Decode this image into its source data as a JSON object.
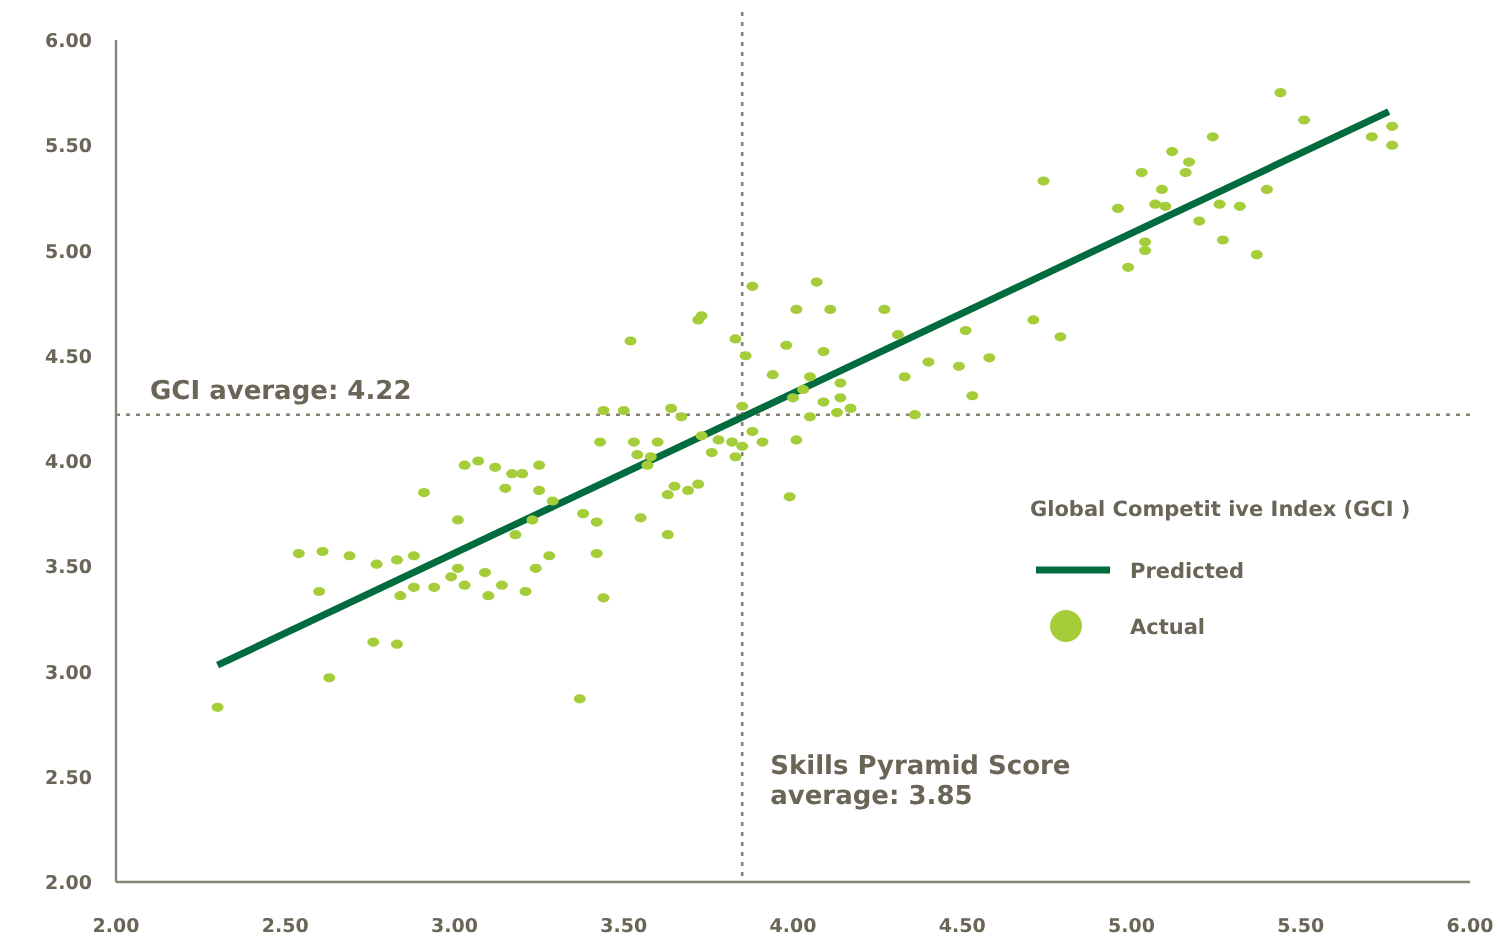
{
  "chart_data": {
    "type": "scatter",
    "xlim": [
      2,
      6
    ],
    "ylim": [
      2,
      6
    ],
    "xticks": [
      {
        "value": 2,
        "label": "2.00"
      },
      {
        "value": 2.5,
        "label": "2.50"
      },
      {
        "value": 3,
        "label": "3.00"
      },
      {
        "value": 3.5,
        "label": "3.50"
      },
      {
        "value": 4,
        "label": "4.00"
      },
      {
        "value": 4.5,
        "label": "4.50"
      },
      {
        "value": 5,
        "label": "5.00"
      },
      {
        "value": 5.5,
        "label": "5.50"
      },
      {
        "value": 6,
        "label": "6.00"
      }
    ],
    "yticks": [
      {
        "value": 2,
        "label": "2.00"
      },
      {
        "value": 2.5,
        "label": "2.50"
      },
      {
        "value": 3,
        "label": "3.00"
      },
      {
        "value": 3.5,
        "label": "3.50"
      },
      {
        "value": 4,
        "label": "4.00"
      },
      {
        "value": 4.5,
        "label": "4.50"
      },
      {
        "value": 5,
        "label": "5.00"
      },
      {
        "value": 5.5,
        "label": "5.50"
      },
      {
        "value": 6,
        "label": "6.00"
      }
    ],
    "grid": false,
    "legend": "right",
    "legend_title": "Global Competit ive Index (GCI  )",
    "ref_lines": [
      {
        "axis": "x",
        "value": 3.85,
        "label": "Skills Pyramid Score average: 3.85",
        "color": "#8a8273",
        "line_style": "dotted"
      },
      {
        "axis": "y",
        "value": 4.22,
        "label": "GCI  average: 4.22",
        "color": "#8a8273",
        "line_style": "dotted"
      }
    ],
    "series": [
      {
        "name": "Predicted",
        "type": "line",
        "color": "#006b3c",
        "line_style": "solid",
        "x": [
          2.3,
          5.76
        ],
        "values": [
          3.03,
          5.66
        ]
      },
      {
        "name": "Actual",
        "color": "#a5cd39",
        "marker": "circle",
        "x": [
          2.3,
          2.54,
          2.61,
          2.69,
          2.6,
          2.77,
          2.83,
          2.88,
          2.84,
          2.88,
          2.94,
          2.99,
          3.01,
          3.03,
          3.09,
          3.1,
          3.14,
          3.21,
          3.24,
          3.28,
          3.42,
          3.44,
          2.76,
          2.83,
          2.63,
          3.37,
          2.91,
          3.01,
          3.03,
          3.07,
          3.12,
          3.17,
          3.2,
          3.25,
          3.15,
          3.25,
          3.29,
          3.18,
          3.23,
          3.38,
          3.42,
          3.43,
          3.44,
          3.5,
          3.88,
          4.07,
          3.72,
          3.73,
          3.52,
          4.01,
          4.11,
          4.27,
          3.83,
          3.98,
          4.09,
          3.86,
          4.31,
          4.4,
          4.49,
          3.94,
          4.05,
          4.14,
          4.03,
          4.0,
          4.14,
          4.09,
          4.33,
          3.64,
          3.67,
          3.85,
          4.05,
          4.13,
          4.17,
          4.36,
          3.53,
          3.6,
          3.54,
          3.58,
          3.57,
          3.73,
          3.78,
          3.82,
          3.76,
          3.83,
          3.88,
          3.85,
          3.91,
          4.01,
          3.65,
          3.63,
          3.69,
          3.72,
          3.55,
          3.63,
          3.99,
          5.44,
          5.51,
          5.77,
          5.71,
          5.77,
          5.24,
          5.12,
          5.17,
          5.16,
          5.03,
          5.09,
          5.07,
          5.1,
          4.96,
          5.26,
          5.32,
          5.4,
          5.2,
          5.04,
          5.04,
          5.27,
          5.37,
          4.99,
          4.74,
          4.71,
          4.79,
          4.51,
          4.58,
          4.53
        ],
        "values": [
          2.83,
          3.56,
          3.57,
          3.55,
          3.38,
          3.51,
          3.53,
          3.55,
          3.36,
          3.4,
          3.4,
          3.45,
          3.49,
          3.41,
          3.47,
          3.36,
          3.41,
          3.38,
          3.49,
          3.55,
          3.56,
          3.35,
          3.14,
          3.13,
          2.97,
          2.87,
          3.85,
          3.72,
          3.98,
          4.0,
          3.97,
          3.94,
          3.94,
          3.98,
          3.87,
          3.86,
          3.81,
          3.65,
          3.72,
          3.75,
          3.71,
          4.09,
          4.24,
          4.24,
          4.83,
          4.85,
          4.67,
          4.69,
          4.57,
          4.72,
          4.72,
          4.72,
          4.58,
          4.55,
          4.52,
          4.5,
          4.6,
          4.47,
          4.45,
          4.41,
          4.4,
          4.37,
          4.34,
          4.3,
          4.3,
          4.28,
          4.4,
          4.25,
          4.21,
          4.26,
          4.21,
          4.23,
          4.25,
          4.22,
          4.09,
          4.09,
          4.03,
          4.02,
          3.98,
          4.12,
          4.1,
          4.09,
          4.04,
          4.02,
          4.14,
          4.07,
          4.09,
          4.1,
          3.88,
          3.84,
          3.86,
          3.89,
          3.73,
          3.65,
          3.83,
          5.75,
          5.62,
          5.59,
          5.54,
          5.5,
          5.54,
          5.47,
          5.42,
          5.37,
          5.37,
          5.29,
          5.22,
          5.21,
          5.2,
          5.22,
          5.21,
          5.29,
          5.14,
          5.04,
          5.0,
          5.05,
          4.98,
          4.92,
          5.33,
          4.67,
          4.59,
          4.62,
          4.49,
          4.31
        ]
      }
    ]
  }
}
